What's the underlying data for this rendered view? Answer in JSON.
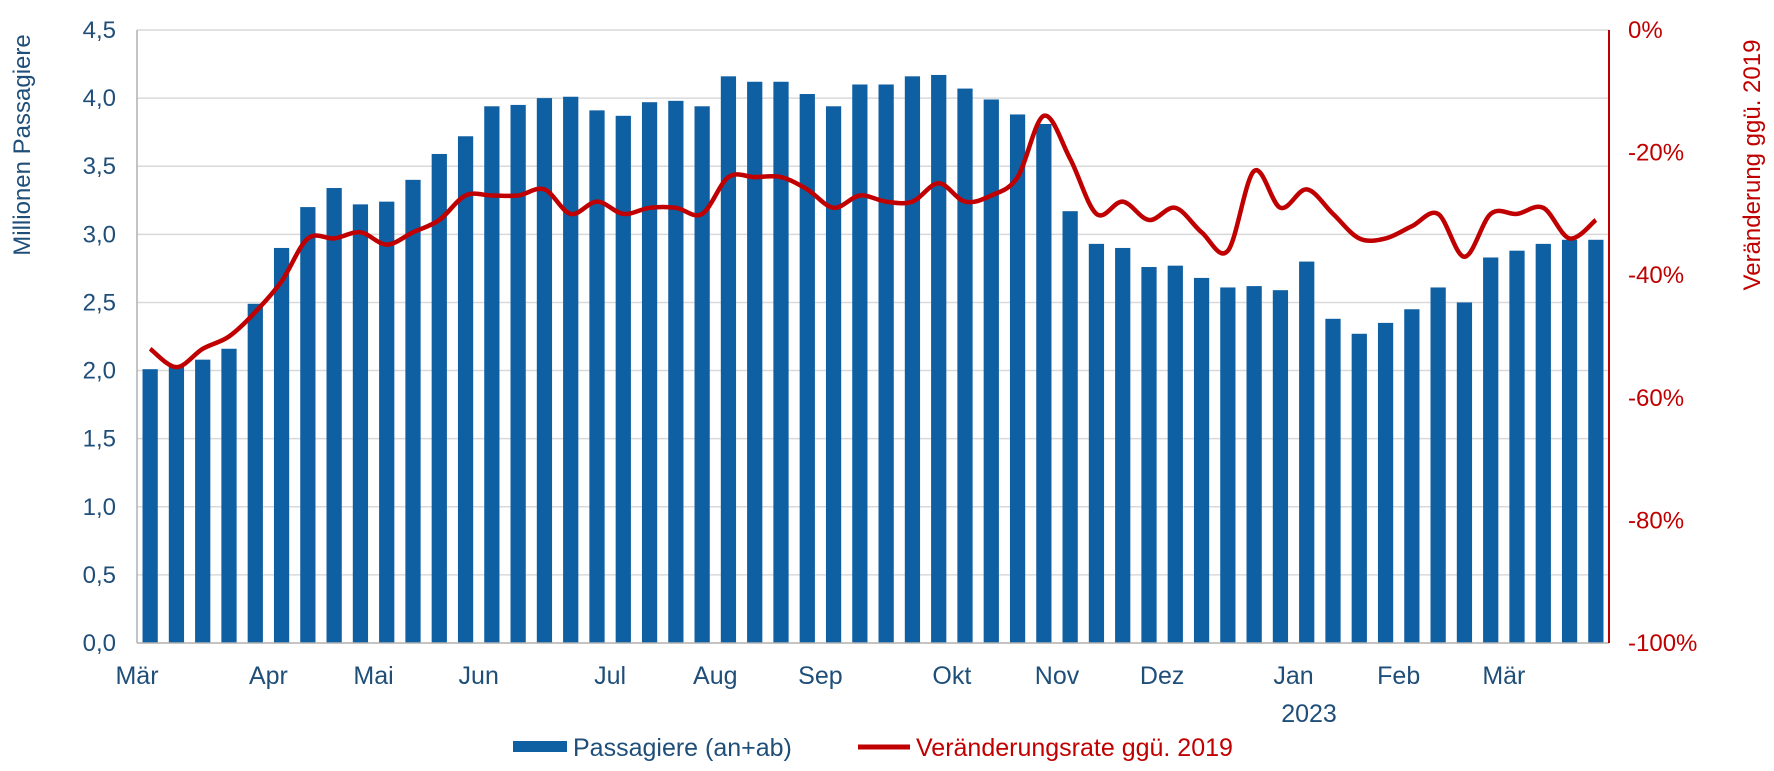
{
  "chart_data": {
    "type": "bar+line",
    "colors": {
      "bars": "#0f5fa3",
      "line": "#c00000",
      "left_axis_text": "#1f4e79",
      "right_axis_text": "#c00000",
      "grid": "#d9d9d9"
    },
    "y_left": {
      "label": "Millionen Passagiere",
      "range": [
        0,
        4.5
      ],
      "ticks": [
        "0,0",
        "0,5",
        "1,0",
        "1,5",
        "2,0",
        "2,5",
        "3,0",
        "3,5",
        "4,0",
        "4,5"
      ]
    },
    "y_right": {
      "label": "Veränderung ggü. 2019",
      "range": [
        -100,
        0
      ],
      "ticks": [
        "-100%",
        "-80%",
        "-60%",
        "-40%",
        "-20%",
        "0%"
      ]
    },
    "x_ticks": [
      {
        "label": "Mär",
        "index": 0
      },
      {
        "label": "Apr",
        "index": 5
      },
      {
        "label": "Mai",
        "index": 9
      },
      {
        "label": "Jun",
        "index": 13
      },
      {
        "label": "Jul",
        "index": 18
      },
      {
        "label": "Aug",
        "index": 22
      },
      {
        "label": "Sep",
        "index": 26
      },
      {
        "label": "Okt",
        "index": 31
      },
      {
        "label": "Nov",
        "index": 35
      },
      {
        "label": "Dez",
        "index": 39
      },
      {
        "label": "Jan",
        "index": 44
      },
      {
        "label": "Feb",
        "index": 48
      },
      {
        "label": "Mär",
        "index": 52
      }
    ],
    "year_label": "2023",
    "grid": true,
    "legend_position": "bottom",
    "series": [
      {
        "name": "Passagiere (an+ab)",
        "type": "bar",
        "axis": "left",
        "values": [
          2.01,
          2.03,
          2.08,
          2.16,
          2.49,
          2.9,
          3.2,
          3.34,
          3.22,
          3.24,
          3.4,
          3.59,
          3.72,
          3.94,
          3.95,
          4.0,
          4.01,
          3.91,
          3.87,
          3.97,
          3.98,
          3.94,
          4.16,
          4.12,
          4.12,
          4.03,
          3.94,
          4.1,
          4.1,
          4.16,
          4.17,
          4.07,
          3.99,
          3.88,
          3.81,
          3.17,
          2.93,
          2.9,
          2.76,
          2.77,
          2.68,
          2.61,
          2.62,
          2.59,
          2.8,
          2.38,
          2.27,
          2.35,
          2.45,
          2.61,
          2.5,
          2.83,
          2.88,
          2.93,
          2.96,
          2.96
        ]
      },
      {
        "name": "Veränderungsrate ggü. 2019",
        "type": "line",
        "axis": "right",
        "values": [
          -52,
          -55,
          -52,
          -50,
          -46,
          -41,
          -34,
          -34,
          -33,
          -35,
          -33,
          -31,
          -27,
          -27,
          -27,
          -26,
          -30,
          -28,
          -30,
          -29,
          -29,
          -30,
          -24,
          -24,
          -24,
          -26,
          -29,
          -27,
          -28,
          -28,
          -25,
          -28,
          -27,
          -24,
          -14,
          -21,
          -30,
          -28,
          -31,
          -29,
          -33,
          -36,
          -23,
          -29,
          -26,
          -30,
          -34,
          -34,
          -32,
          -30,
          -37,
          -30,
          -30,
          -29,
          -34,
          -31
        ]
      }
    ]
  }
}
